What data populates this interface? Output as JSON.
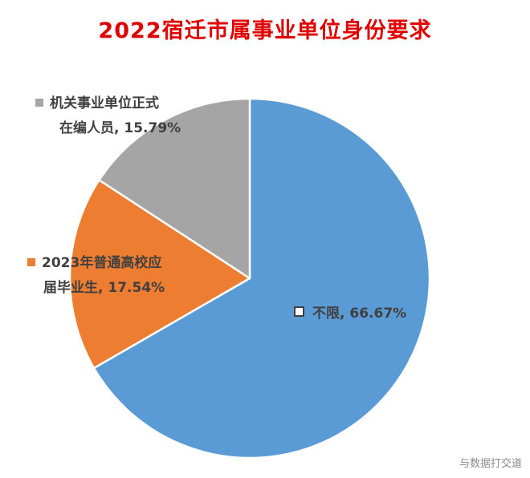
{
  "chart_data": {
    "type": "pie",
    "title": "2022宿迁市属事业单位身份要求",
    "slices": [
      {
        "name": "不限",
        "value": 66.67,
        "label": "不限, 66.67%",
        "label_lines": [
          "不限, 66.67%"
        ],
        "color": "#5b9bd5",
        "marker": "hollow"
      },
      {
        "name": "2023年普通高校应届毕业生",
        "value": 17.54,
        "label": "2023年普通高校应届毕业生, 17.54%",
        "label_lines": [
          "2023年普通高校应",
          "届毕业生, 17.54%"
        ],
        "color": "#ed7d31",
        "marker": "filled"
      },
      {
        "name": "机关事业单位正式在编人员",
        "value": 15.79,
        "label": "机关事业单位正式在编人员, 15.79%",
        "label_lines": [
          "机关事业单位正式",
          "在编人员, 15.79%"
        ],
        "color": "#a5a5a5",
        "marker": "filled"
      }
    ],
    "start": "12 o'clock",
    "direction": "clockwise"
  },
  "watermark": "与数据打交道"
}
